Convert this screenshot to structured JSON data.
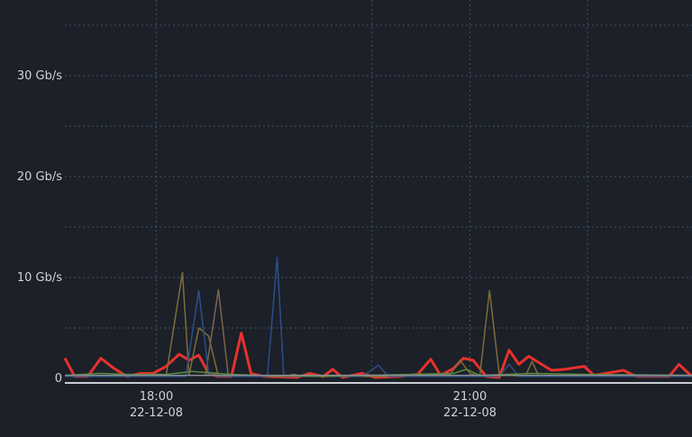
{
  "chart_data": {
    "type": "line",
    "title": "",
    "xlabel": "",
    "ylabel": "",
    "ylim": [
      0,
      37.5
    ],
    "xlim": [
      0.5,
      96.5
    ],
    "grid": true,
    "y_ticks": [
      {
        "value": 0,
        "label": "0"
      },
      {
        "value": 5,
        "label": ""
      },
      {
        "value": 10,
        "label": "10 Gb/s"
      },
      {
        "value": 15,
        "label": ""
      },
      {
        "value": 20,
        "label": "20 Gb/s"
      },
      {
        "value": 25,
        "label": ""
      },
      {
        "value": 30,
        "label": "30 Gb/s"
      },
      {
        "value": 35,
        "label": ""
      }
    ],
    "x_grid": [
      14.5,
      47.5,
      80.5
    ],
    "x_ticks": [
      {
        "value": 14.5,
        "time": "18:00",
        "date": "22-12-08"
      },
      {
        "value": 62.5,
        "time": "21:00",
        "date": "22-12-08"
      }
    ],
    "series": [
      {
        "color": "#e8312b",
        "width": 3,
        "points": [
          [
            0.5,
            2
          ],
          [
            2,
            0.2
          ],
          [
            4,
            0.2
          ],
          [
            6,
            2
          ],
          [
            8,
            1
          ],
          [
            10,
            0.2
          ],
          [
            12,
            0.5
          ],
          [
            14,
            0.5
          ],
          [
            16,
            1.2
          ],
          [
            18,
            2.4
          ],
          [
            19.5,
            1.8
          ],
          [
            21,
            2.3
          ],
          [
            22.5,
            0.5
          ],
          [
            24,
            0.2
          ],
          [
            26,
            0.2
          ],
          [
            27.5,
            4.5
          ],
          [
            29,
            0.5
          ],
          [
            31,
            0.2
          ],
          [
            36,
            0.1
          ],
          [
            38,
            0.5
          ],
          [
            40,
            0.2
          ],
          [
            41.5,
            0.9
          ],
          [
            43,
            0.1
          ],
          [
            46,
            0.5
          ],
          [
            48,
            0.1
          ],
          [
            52,
            0.2
          ],
          [
            54.5,
            0.4
          ],
          [
            56.5,
            1.9
          ],
          [
            58,
            0.3
          ],
          [
            60,
            1
          ],
          [
            61.5,
            2
          ],
          [
            63,
            1.8
          ],
          [
            65,
            0.2
          ],
          [
            67,
            0.1
          ],
          [
            68.5,
            2.8
          ],
          [
            70,
            1.4
          ],
          [
            71.5,
            2.2
          ],
          [
            73,
            1.6
          ],
          [
            75,
            0.8
          ],
          [
            77,
            0.9
          ],
          [
            80,
            1.2
          ],
          [
            81.5,
            0.3
          ],
          [
            86,
            0.8
          ],
          [
            88,
            0.2
          ],
          [
            93,
            0.2
          ],
          [
            94.5,
            1.4
          ],
          [
            96.5,
            0.2
          ]
        ]
      },
      {
        "color": "#7d6c3a",
        "width": 1.5,
        "points": [
          [
            8,
            0.2
          ],
          [
            16,
            0.3
          ],
          [
            18.5,
            10.5
          ],
          [
            19.5,
            0.3
          ],
          [
            21,
            5
          ],
          [
            22.5,
            4.2
          ],
          [
            24,
            0.2
          ],
          [
            34,
            0.2
          ],
          [
            35.5,
            0.4
          ],
          [
            37,
            0.2
          ],
          [
            50,
            0.2
          ],
          [
            59.5,
            0.4
          ],
          [
            61,
            1.8
          ],
          [
            62.5,
            0.5
          ],
          [
            64,
            0.2
          ],
          [
            65.5,
            8.7
          ],
          [
            67,
            0.4
          ],
          [
            71,
            0.2
          ],
          [
            72,
            1.7
          ],
          [
            73,
            0.3
          ],
          [
            76,
            0.2
          ],
          [
            96.5,
            0.2
          ]
        ]
      },
      {
        "color": "#7a6548",
        "width": 1.5,
        "points": [
          [
            22,
            0.2
          ],
          [
            24,
            8.8
          ],
          [
            25.5,
            0.3
          ],
          [
            30,
            0.2
          ]
        ]
      },
      {
        "color": "#2b4f86",
        "width": 1.5,
        "points": [
          [
            0.5,
            0.2
          ],
          [
            19,
            0.2
          ],
          [
            21,
            8.7
          ],
          [
            22.5,
            0.5
          ],
          [
            24,
            0.2
          ],
          [
            31.5,
            0.2
          ],
          [
            33,
            12
          ],
          [
            34,
            0.2
          ],
          [
            46,
            0.2
          ],
          [
            48.5,
            1.3
          ],
          [
            50,
            0.2
          ],
          [
            67,
            0.2
          ],
          [
            68.5,
            1.4
          ],
          [
            70,
            0.2
          ],
          [
            96.5,
            0.2
          ]
        ]
      },
      {
        "color": "#5a8a3c",
        "width": 1.5,
        "points": [
          [
            0.5,
            0.3
          ],
          [
            6,
            0.5
          ],
          [
            10,
            0.4
          ],
          [
            16,
            0.4
          ],
          [
            20,
            0.7
          ],
          [
            26,
            0.4
          ],
          [
            30,
            0.3
          ],
          [
            40,
            0.2
          ],
          [
            60,
            0.5
          ],
          [
            62,
            0.9
          ],
          [
            64,
            0.3
          ],
          [
            72,
            0.5
          ],
          [
            80,
            0.4
          ],
          [
            96.5,
            0.3
          ]
        ]
      },
      {
        "color": "#8b8f96",
        "width": 1.5,
        "points": [
          [
            0.5,
            0.3
          ],
          [
            96.5,
            0.3
          ]
        ]
      }
    ]
  }
}
